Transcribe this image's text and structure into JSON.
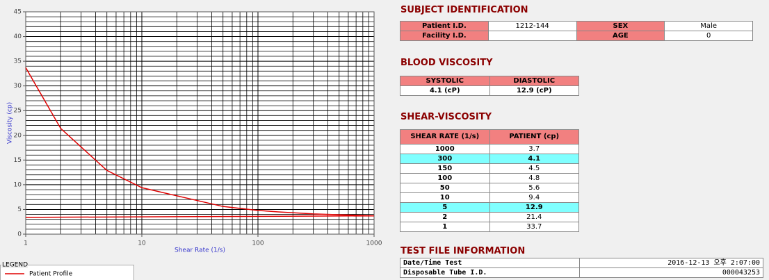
{
  "chart_data": {
    "type": "line",
    "xlabel": "Shear Rate (1/s)",
    "ylabel": "Viscosity (cp)",
    "xscale": "log",
    "xlim": [
      1,
      1000
    ],
    "xticks": [
      1,
      10,
      100,
      1000
    ],
    "xminor": [
      2,
      3,
      4,
      5,
      6,
      7,
      8,
      9,
      20,
      30,
      40,
      50,
      60,
      70,
      80,
      90,
      200,
      300,
      400,
      500,
      600,
      700,
      800,
      900
    ],
    "ylim": [
      0,
      45
    ],
    "yticks": [
      0,
      5,
      10,
      15,
      20,
      25,
      30,
      35,
      40,
      45
    ],
    "yminor": [
      1,
      2,
      3,
      4,
      6,
      7,
      8,
      9,
      11,
      12,
      13,
      14,
      16,
      17,
      18,
      19,
      21,
      22,
      23,
      24,
      26,
      27,
      28,
      29,
      31,
      32,
      33,
      34,
      36,
      37,
      38,
      39,
      41,
      42,
      43,
      44
    ],
    "grid": true,
    "legend_title": "LEGEND",
    "legend": "bottom-left",
    "series": [
      {
        "name": "Patient Profile",
        "color": "#e00000",
        "x": [
          1,
          2,
          5,
          10,
          50,
          100,
          150,
          300,
          1000
        ],
        "values": [
          33.7,
          21.4,
          12.9,
          9.4,
          5.6,
          4.8,
          4.5,
          4.1,
          3.7
        ]
      },
      {
        "color": "#e00000",
        "x": [
          1,
          1000
        ],
        "values": [
          3.4,
          3.7
        ]
      }
    ]
  },
  "subject": {
    "title": "SUBJECT IDENTIFICATION",
    "rows": [
      [
        "Patient I.D.",
        "1212-144",
        "SEX",
        "Male"
      ],
      [
        "Facility I.D.",
        null,
        "AGE",
        "0"
      ]
    ]
  },
  "blood_viscosity": {
    "title": "BLOOD VISCOSITY",
    "header": [
      "SYSTOLIC",
      "DIASTOLIC"
    ],
    "rows": [
      [
        "4.1 (cP)",
        "12.9 (cP)"
      ]
    ]
  },
  "shear_viscosity": {
    "title": "SHEAR-VISCOSITY",
    "header": [
      "SHEAR RATE (1/s)",
      "PATIENT (cp)"
    ],
    "rows": [
      [
        "1000",
        "3.7"
      ],
      [
        "300",
        "4.1"
      ],
      [
        "150",
        "4.5"
      ],
      [
        "100",
        "4.8"
      ],
      [
        "50",
        "5.6"
      ],
      [
        "10",
        "9.4"
      ],
      [
        "5",
        "12.9"
      ],
      [
        "2",
        "21.4"
      ],
      [
        "1",
        "33.7"
      ]
    ],
    "highlight_rows": [
      1,
      6
    ],
    "highlight_color": "#80ffff"
  },
  "test_file": {
    "title": "TEST FILE INFORMATION",
    "rows": [
      [
        "Date/Time Test",
        "2016-12-13  오후 2:07:00"
      ],
      [
        "Disposable Tube I.D.",
        "000043253"
      ]
    ]
  }
}
